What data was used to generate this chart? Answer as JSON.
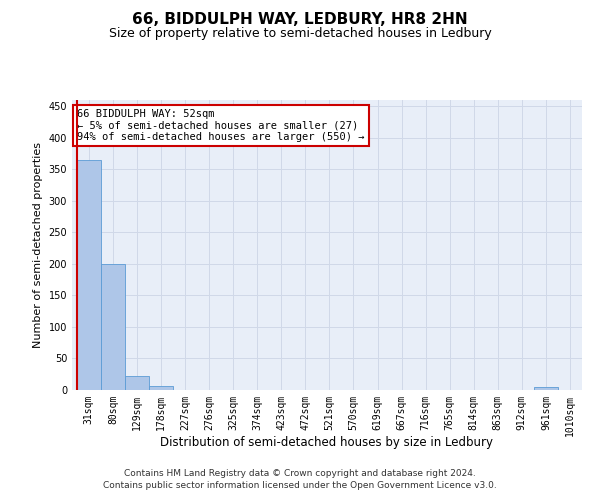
{
  "title": "66, BIDDULPH WAY, LEDBURY, HR8 2HN",
  "subtitle": "Size of property relative to semi-detached houses in Ledbury",
  "xlabel": "Distribution of semi-detached houses by size in Ledbury",
  "ylabel": "Number of semi-detached properties",
  "footer_line1": "Contains HM Land Registry data © Crown copyright and database right 2024.",
  "footer_line2": "Contains public sector information licensed under the Open Government Licence v3.0.",
  "annotation_title": "66 BIDDULPH WAY: 52sqm",
  "annotation_line1": "← 5% of semi-detached houses are smaller (27)",
  "annotation_line2": "94% of semi-detached houses are larger (550) →",
  "bar_labels": [
    "31sqm",
    "80sqm",
    "129sqm",
    "178sqm",
    "227sqm",
    "276sqm",
    "325sqm",
    "374sqm",
    "423sqm",
    "472sqm",
    "521sqm",
    "570sqm",
    "619sqm",
    "667sqm",
    "716sqm",
    "765sqm",
    "814sqm",
    "863sqm",
    "912sqm",
    "961sqm",
    "1010sqm"
  ],
  "bar_values": [
    365,
    200,
    23,
    6,
    0,
    0,
    0,
    0,
    0,
    0,
    0,
    0,
    0,
    0,
    0,
    0,
    0,
    0,
    0,
    5,
    0
  ],
  "bar_color": "#aec6e8",
  "bar_edge_color": "#5b9bd5",
  "vline_color": "#cc0000",
  "ylim": [
    0,
    460
  ],
  "yticks": [
    0,
    50,
    100,
    150,
    200,
    250,
    300,
    350,
    400,
    450
  ],
  "annotation_box_color": "#ffffff",
  "annotation_box_edge_color": "#cc0000",
  "grid_color": "#d0d8e8",
  "bg_color": "#e8eef8",
  "title_fontsize": 11,
  "subtitle_fontsize": 9,
  "annotation_fontsize": 7.5,
  "axis_fontsize": 7,
  "ylabel_fontsize": 8,
  "xlabel_fontsize": 8.5,
  "footer_fontsize": 6.5
}
